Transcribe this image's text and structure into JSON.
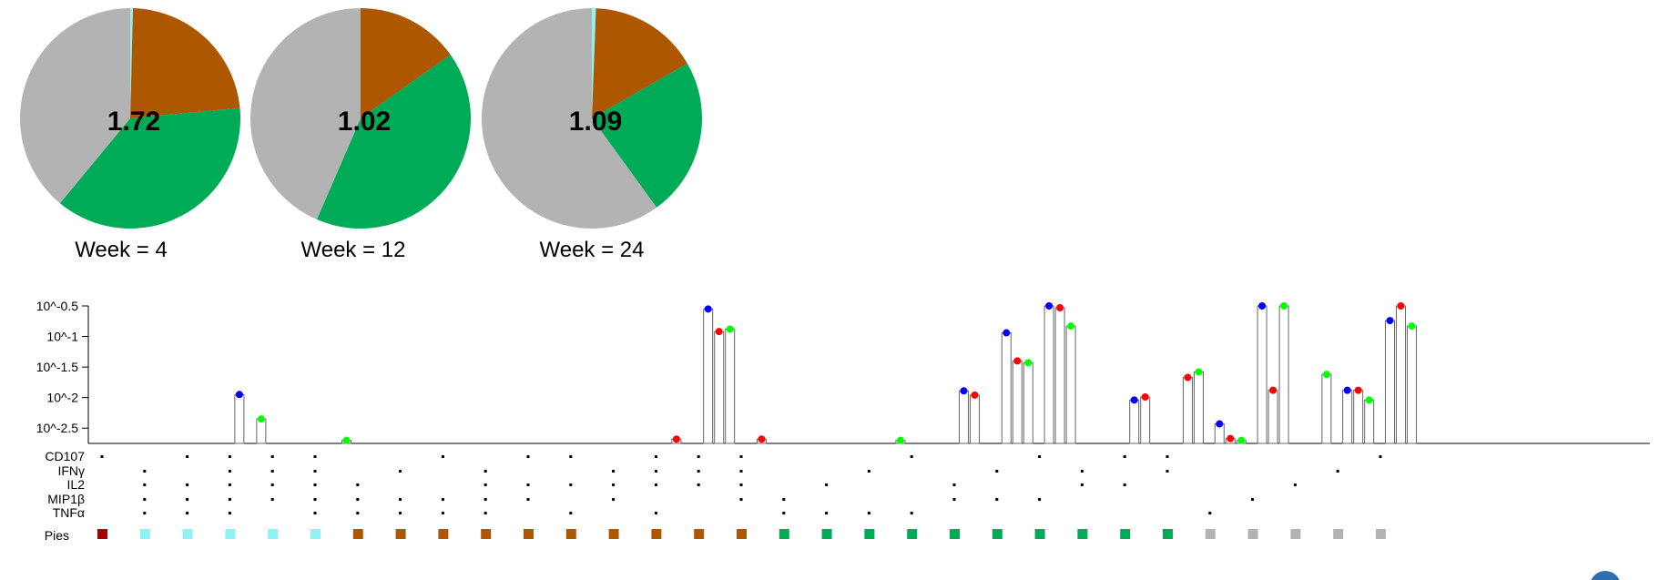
{
  "colors": {
    "grey": "#b3b3b3",
    "orange": "#ad5700",
    "green": "#00ab57",
    "cyan": "#8ff3f3",
    "darkred": "#a70000",
    "dot_blue": "#0000ff",
    "dot_red": "#ff0000",
    "dot_green": "#00ff00"
  },
  "chart_data": [
    {
      "type": "pie",
      "pies": [
        {
          "label": "Week = 4",
          "value": "1.72",
          "slices": [
            {
              "color": "cyan",
              "value": 0.004
            },
            {
              "color": "orange",
              "value": 0.231
            },
            {
              "color": "green",
              "value": 0.375
            },
            {
              "color": "grey",
              "value": 0.39
            }
          ]
        },
        {
          "label": "Week = 12",
          "value": "1.02",
          "slices": [
            {
              "color": "orange",
              "value": 0.152
            },
            {
              "color": "green",
              "value": 0.413
            },
            {
              "color": "grey",
              "value": 0.435
            }
          ]
        },
        {
          "label": "Week = 24",
          "value": "1.09",
          "slices": [
            {
              "color": "cyan",
              "value": 0.006
            },
            {
              "color": "orange",
              "value": 0.161
            },
            {
              "color": "green",
              "value": 0.233
            },
            {
              "color": "grey",
              "value": 0.6
            }
          ]
        }
      ]
    },
    {
      "type": "bar",
      "yscale": "log10",
      "ylim": [
        -2.75,
        -0.5
      ],
      "yticks": [
        {
          "value": -0.5,
          "label": "10^-0.5"
        },
        {
          "value": -1,
          "label": "10^-1"
        },
        {
          "value": -1.5,
          "label": "10^-1.5"
        },
        {
          "value": -2,
          "label": "10^-2"
        },
        {
          "value": -2.5,
          "label": "10^-2.5"
        }
      ],
      "row_labels": [
        "CD107",
        "IFNγ",
        "IL2",
        "MIP1β",
        "TNFα"
      ],
      "pies_label": "Pies",
      "categories": [
        {
          "pie": "darkred",
          "m": [
            1,
            0,
            0,
            0,
            0
          ],
          "v": []
        },
        {
          "pie": "cyan",
          "m": [
            0,
            1,
            1,
            1,
            1
          ],
          "v": []
        },
        {
          "pie": "cyan",
          "m": [
            1,
            0,
            1,
            1,
            1
          ],
          "v": []
        },
        {
          "pie": "cyan",
          "m": [
            1,
            1,
            1,
            1,
            1
          ],
          "v": [
            -1.95,
            null,
            -2.35
          ]
        },
        {
          "pie": "cyan",
          "m": [
            1,
            1,
            1,
            1,
            0
          ],
          "v": []
        },
        {
          "pie": "cyan",
          "m": [
            1,
            1,
            1,
            1,
            1
          ],
          "v": [
            null,
            null,
            -2.7
          ]
        },
        {
          "pie": "orange",
          "m": [
            0,
            0,
            1,
            1,
            1
          ],
          "v": []
        },
        {
          "pie": "orange",
          "m": [
            0,
            1,
            0,
            1,
            1
          ],
          "v": []
        },
        {
          "pie": "orange",
          "m": [
            1,
            0,
            0,
            1,
            1
          ],
          "v": []
        },
        {
          "pie": "orange",
          "m": [
            0,
            1,
            1,
            1,
            1
          ],
          "v": []
        },
        {
          "pie": "orange",
          "m": [
            1,
            0,
            1,
            1,
            0
          ],
          "v": []
        },
        {
          "pie": "orange",
          "m": [
            1,
            0,
            1,
            0,
            1
          ],
          "v": []
        },
        {
          "pie": "orange",
          "m": [
            0,
            1,
            1,
            1,
            0
          ],
          "v": []
        },
        {
          "pie": "orange",
          "m": [
            1,
            1,
            1,
            0,
            1
          ],
          "v": [
            null,
            -2.68,
            null
          ]
        },
        {
          "pie": "orange",
          "m": [
            1,
            1,
            1,
            0,
            0
          ],
          "v": [
            -0.55,
            -0.92,
            -0.88
          ]
        },
        {
          "pie": "orange",
          "m": [
            1,
            1,
            1,
            1,
            0
          ],
          "v": [
            null,
            -2.68,
            null
          ]
        },
        {
          "pie": "green",
          "m": [
            0,
            0,
            0,
            1,
            1
          ],
          "v": []
        },
        {
          "pie": "green",
          "m": [
            0,
            0,
            1,
            0,
            1
          ],
          "v": []
        },
        {
          "pie": "green",
          "m": [
            0,
            1,
            0,
            0,
            1
          ],
          "v": [
            null,
            null,
            -2.7
          ]
        },
        {
          "pie": "green",
          "m": [
            1,
            0,
            0,
            0,
            1
          ],
          "v": []
        },
        {
          "pie": "green",
          "m": [
            0,
            0,
            1,
            1,
            0
          ],
          "v": [
            -1.89,
            -1.96,
            null
          ]
        },
        {
          "pie": "green",
          "m": [
            0,
            1,
            0,
            1,
            0
          ],
          "v": [
            -0.94,
            -1.4,
            -1.43
          ]
        },
        {
          "pie": "green",
          "m": [
            1,
            0,
            0,
            1,
            0
          ],
          "v": [
            -0.5,
            -0.53,
            -0.83
          ]
        },
        {
          "pie": "green",
          "m": [
            0,
            1,
            1,
            0,
            0
          ],
          "v": []
        },
        {
          "pie": "green",
          "m": [
            1,
            0,
            1,
            0,
            0
          ],
          "v": [
            -2.04,
            -1.99,
            null
          ]
        },
        {
          "pie": "green",
          "m": [
            1,
            1,
            0,
            0,
            0
          ],
          "v": [
            null,
            -1.67,
            -1.58
          ]
        },
        {
          "pie": "grey",
          "m": [
            0,
            0,
            0,
            0,
            1
          ],
          "v": [
            -2.43,
            -2.67,
            -2.7
          ]
        },
        {
          "pie": "grey",
          "m": [
            0,
            0,
            0,
            1,
            0
          ],
          "v": [
            -0.5,
            -1.88,
            -0.5
          ]
        },
        {
          "pie": "grey",
          "m": [
            0,
            0,
            1,
            0,
            0
          ],
          "v": [
            null,
            null,
            -1.62
          ]
        },
        {
          "pie": "grey",
          "m": [
            0,
            1,
            0,
            0,
            0
          ],
          "v": [
            -1.88,
            -1.88,
            -2.04
          ]
        },
        {
          "pie": "grey",
          "m": [
            1,
            0,
            0,
            0,
            0
          ],
          "v": [
            -0.74,
            -0.5,
            -0.83
          ]
        }
      ]
    }
  ]
}
